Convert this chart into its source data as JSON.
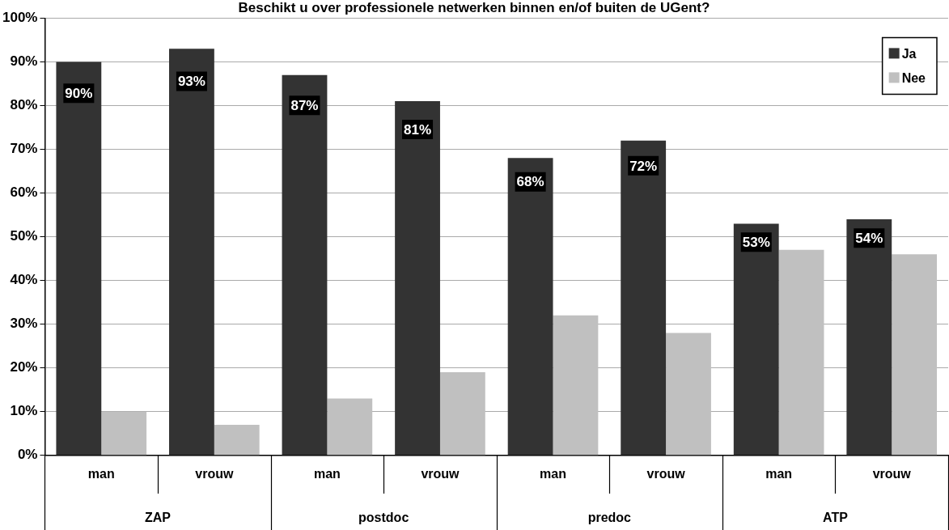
{
  "chart_data": {
    "type": "bar",
    "title": "Beschikt u over professionele netwerken binnen en/of buiten de UGent?",
    "categories": [
      "man",
      "vrouw",
      "man",
      "vrouw",
      "man",
      "vrouw",
      "man",
      "vrouw"
    ],
    "annotations": [
      "ZAP",
      "postdoc",
      "predoc",
      "ATP"
    ],
    "series": [
      {
        "name": "Ja",
        "color": "#333333",
        "values": [
          90,
          93,
          87,
          81,
          68,
          72,
          53,
          54
        ],
        "value_labels": [
          "90%",
          "93%",
          "87%",
          "81%",
          "68%",
          "72%",
          "53%",
          "54%"
        ]
      },
      {
        "name": "Nee",
        "color": "#c0c0c0",
        "values": [
          10,
          7,
          13,
          19,
          32,
          28,
          47,
          46
        ]
      }
    ],
    "ylim": [
      0,
      100
    ],
    "yticks": [
      {
        "value": 0,
        "label": "0%"
      },
      {
        "value": 10,
        "label": "10%"
      },
      {
        "value": 20,
        "label": "20%"
      },
      {
        "value": 30,
        "label": "30%"
      },
      {
        "value": 40,
        "label": "40%"
      },
      {
        "value": 50,
        "label": "50%"
      },
      {
        "value": 60,
        "label": "60%"
      },
      {
        "value": 70,
        "label": "70%"
      },
      {
        "value": 80,
        "label": "80%"
      },
      {
        "value": 90,
        "label": "90%"
      },
      {
        "value": 100,
        "label": "100%"
      }
    ],
    "grid": "y",
    "legend": "top right"
  }
}
